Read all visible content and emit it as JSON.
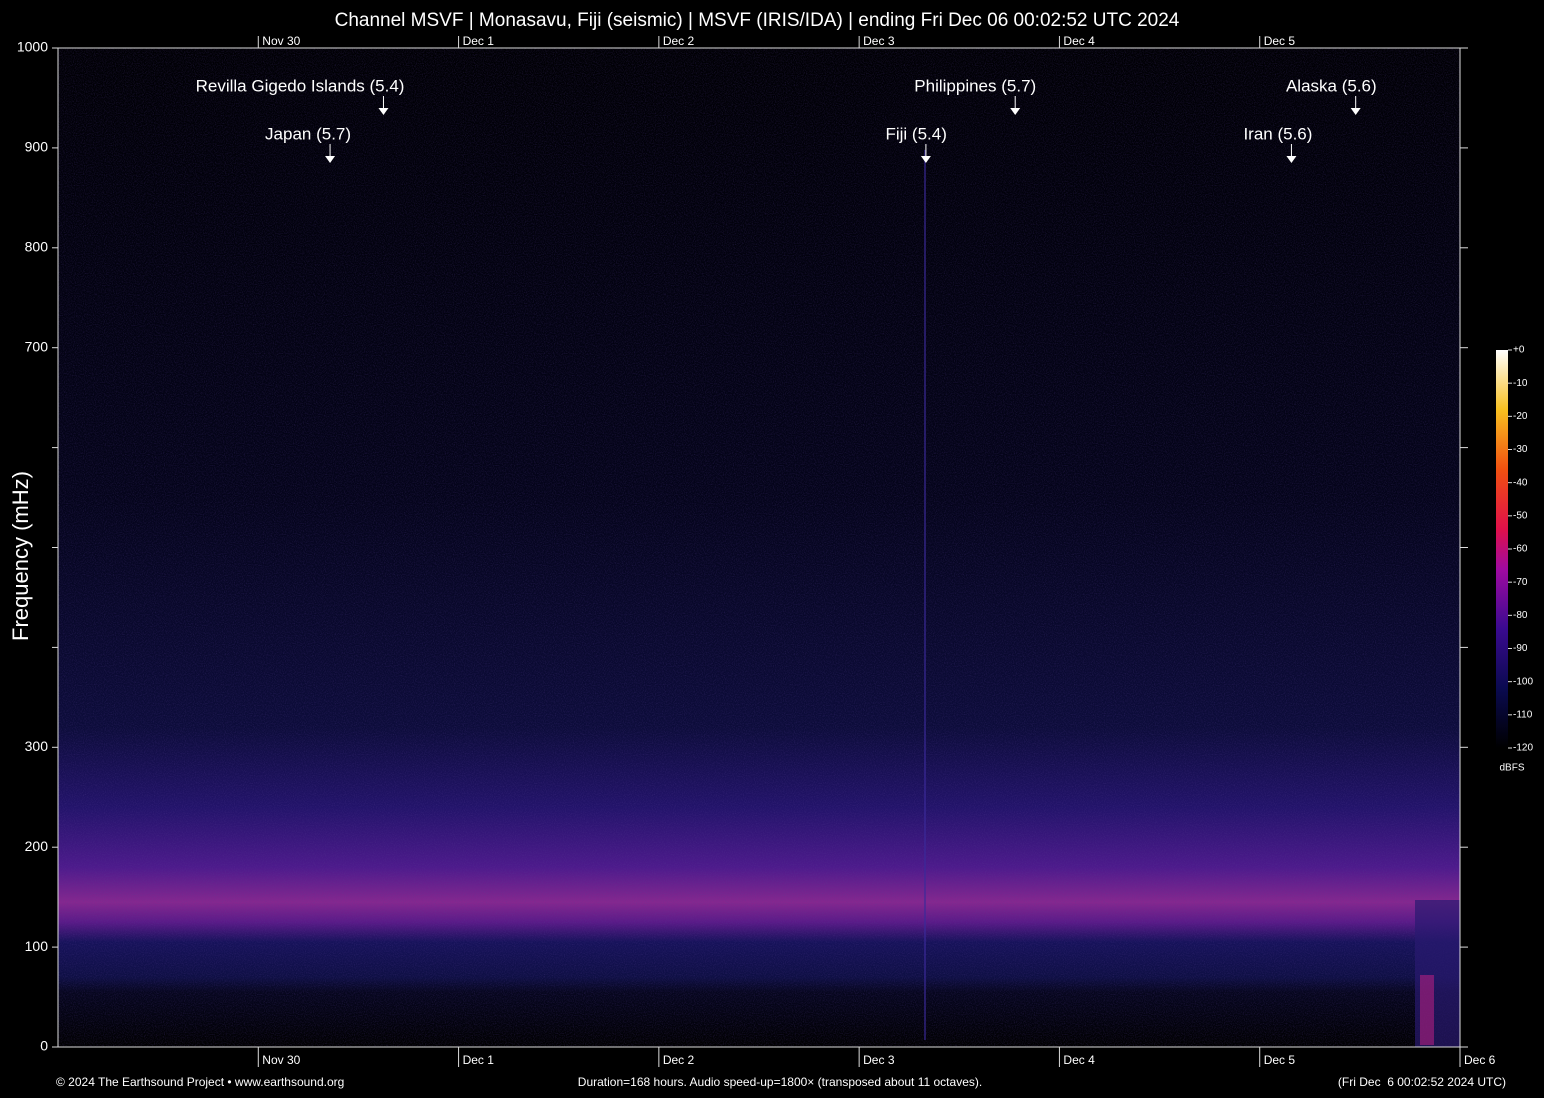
{
  "chart_data": {
    "type": "spectrogram",
    "title": "Channel MSVF | Monasavu, Fiji (seismic) | MSVF (IRIS/IDA) | ending Fri Dec 06 00:02:52 UTC 2024",
    "ylabel": "Frequency (mHz)",
    "ylim": [
      0,
      1000
    ],
    "yticks": [
      0,
      100,
      200,
      300,
      {
        "value": 400,
        "label": null
      },
      {
        "value": 500,
        "label": null
      },
      {
        "value": 600,
        "label": null
      },
      700,
      800,
      900,
      1000
    ],
    "xlim": [
      0,
      168
    ],
    "xticks": [
      {
        "value": 24,
        "label": "Nov 30"
      },
      {
        "value": 48,
        "label": "Dec 1"
      },
      {
        "value": 72,
        "label": "Dec 2"
      },
      {
        "value": 96,
        "label": "Dec 3"
      },
      {
        "value": 120,
        "label": "Dec 4"
      },
      {
        "value": 144,
        "label": "Dec 5"
      },
      {
        "value": 168,
        "label": "Dec 6"
      }
    ],
    "events": [
      {
        "label": "Japan (5.7)",
        "x": 32.6
      },
      {
        "label": "Revilla Gigedo Islands (5.4)",
        "x": 39.0
      },
      {
        "label": "Fiji (5.4)",
        "x": 104.0
      },
      {
        "label": "Philippines (5.7)",
        "x": 114.7
      },
      {
        "label": "Iran (5.6)",
        "x": 147.8
      },
      {
        "label": "Alaska (5.6)",
        "x": 155.5
      }
    ],
    "colorbar": {
      "label": "dBFS",
      "lim": [
        -120,
        0
      ],
      "ticks": [
        {
          "value": 0,
          "label": "+0"
        },
        -10,
        -20,
        -30,
        -40,
        -50,
        -60,
        -70,
        -80,
        -90,
        -100,
        -110,
        -120
      ]
    },
    "footer": {
      "left": "© 2024 The Earthsound Project • www.earthsound.org",
      "center": "Duration=168 hours. Audio speed-up=1800× (transposed about 11 octaves).",
      "right": "(Fri Dec  6 00:02:52 2024 UTC)"
    }
  }
}
